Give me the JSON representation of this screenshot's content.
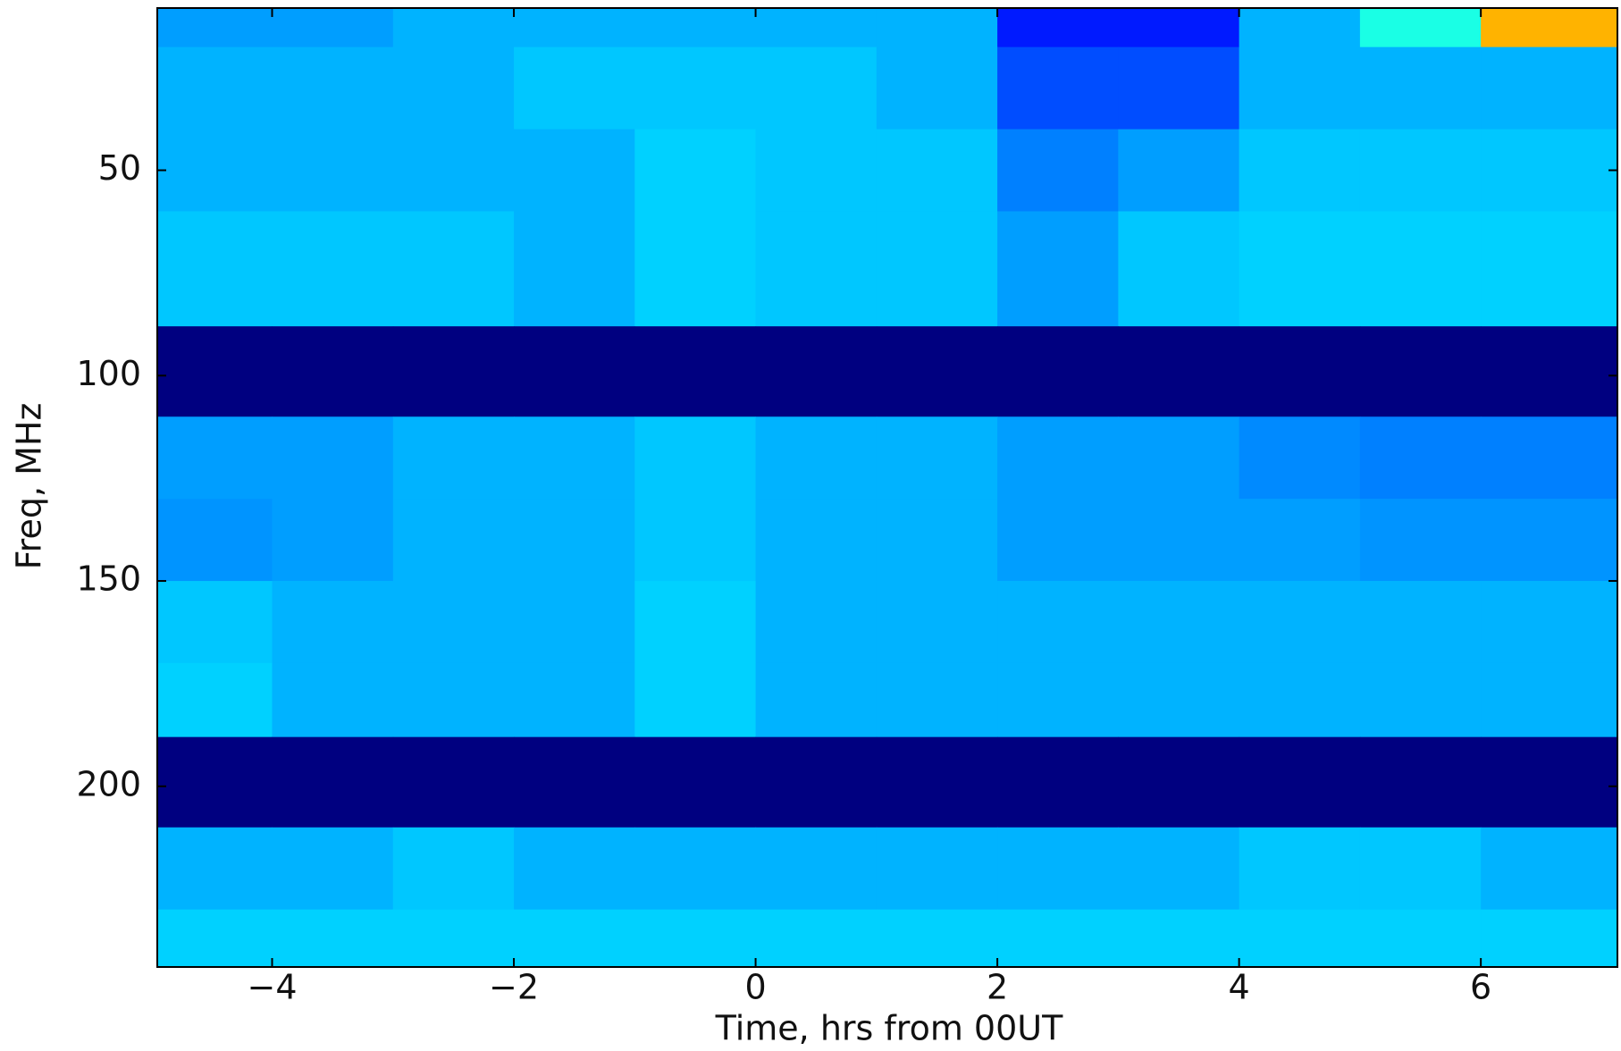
{
  "chart_data": {
    "type": "heatmap",
    "colormap": "jet",
    "x_label": "Time, hrs from 00UT",
    "y_label": "Freq, MHz",
    "xlim": [
      -4.95,
      7.13
    ],
    "ylim": [
      244,
      10.5
    ],
    "xticks": [
      {
        "value": -4,
        "label": "−4"
      },
      {
        "value": -2,
        "label": "−2"
      },
      0,
      2,
      4,
      6
    ],
    "yticks": [
      50,
      100,
      150,
      200
    ],
    "x_edges": [
      -4.95,
      -4,
      -3,
      -2,
      -1,
      0,
      1,
      2,
      3,
      4,
      5,
      6,
      7.13
    ],
    "y_edges": [
      10.5,
      20,
      40,
      60,
      88,
      110,
      130,
      150,
      170,
      188,
      210,
      230,
      244
    ],
    "z": [
      [
        0.28,
        0.28,
        0.3,
        0.3,
        0.3,
        0.3,
        0.3,
        0.15,
        0.15,
        0.3,
        0.4,
        0.7
      ],
      [
        0.3,
        0.3,
        0.3,
        0.32,
        0.32,
        0.32,
        0.3,
        0.2,
        0.2,
        0.3,
        0.3,
        0.3
      ],
      [
        0.3,
        0.3,
        0.3,
        0.3,
        0.33,
        0.32,
        0.32,
        0.25,
        0.28,
        0.32,
        0.32,
        0.32
      ],
      [
        0.32,
        0.32,
        0.32,
        0.3,
        0.33,
        0.32,
        0.32,
        0.28,
        0.32,
        0.33,
        0.33,
        0.33
      ],
      [
        0,
        0,
        0,
        0,
        0,
        0,
        0,
        0,
        0,
        0,
        0,
        0
      ],
      [
        0.28,
        0.28,
        0.3,
        0.3,
        0.32,
        0.3,
        0.3,
        0.28,
        0.28,
        0.26,
        0.25,
        0.25
      ],
      [
        0.27,
        0.28,
        0.3,
        0.3,
        0.32,
        0.3,
        0.3,
        0.28,
        0.28,
        0.28,
        0.27,
        0.27
      ],
      [
        0.32,
        0.3,
        0.3,
        0.3,
        0.33,
        0.3,
        0.3,
        0.3,
        0.3,
        0.3,
        0.3,
        0.3
      ],
      [
        0.33,
        0.3,
        0.3,
        0.3,
        0.33,
        0.3,
        0.3,
        0.3,
        0.3,
        0.3,
        0.3,
        0.3
      ],
      [
        0,
        0,
        0,
        0,
        0,
        0,
        0,
        0,
        0,
        0,
        0,
        0
      ],
      [
        0.3,
        0.3,
        0.32,
        0.3,
        0.3,
        0.3,
        0.3,
        0.3,
        0.3,
        0.32,
        0.32,
        0.3
      ],
      [
        0.33,
        0.33,
        0.33,
        0.33,
        0.33,
        0.33,
        0.33,
        0.33,
        0.33,
        0.33,
        0.33,
        0.33
      ]
    ]
  }
}
